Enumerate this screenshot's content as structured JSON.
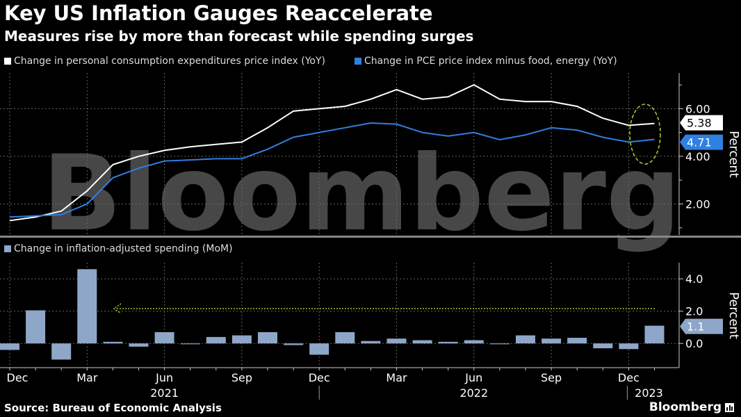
{
  "header": {
    "title": "Key US Inflation Gauges Reaccelerate",
    "subtitle": "Measures rise by more than forecast while spending surges"
  },
  "watermark": "Bloomberg",
  "footer": {
    "source": "Source: Bureau of Economic Analysis",
    "brand": "Bloomberg"
  },
  "colors": {
    "headline": "#ffffff",
    "core": "#2f80e0",
    "bars": "#8ea6c8",
    "annotation": "#9ccc2c"
  },
  "chart_data": [
    {
      "type": "line",
      "x": [
        "2020-12",
        "2021-01",
        "2021-02",
        "2021-03",
        "2021-04",
        "2021-05",
        "2021-06",
        "2021-07",
        "2021-08",
        "2021-09",
        "2021-10",
        "2021-11",
        "2021-12",
        "2022-01",
        "2022-02",
        "2022-03",
        "2022-04",
        "2022-05",
        "2022-06",
        "2022-07",
        "2022-08",
        "2022-09",
        "2022-10",
        "2022-11",
        "2022-12",
        "2023-01"
      ],
      "series": [
        {
          "name": "Change in personal consumption expenditures price index (YoY)",
          "color": "#ffffff",
          "values": [
            1.3,
            1.45,
            1.7,
            2.55,
            3.65,
            4.0,
            4.25,
            4.4,
            4.5,
            4.6,
            5.2,
            5.9,
            6.0,
            6.1,
            6.4,
            6.8,
            6.4,
            6.5,
            7.0,
            6.4,
            6.3,
            6.3,
            6.1,
            5.6,
            5.3,
            5.38
          ]
        },
        {
          "name": "Change in PCE price index minus food, energy (YoY)",
          "color": "#2f80e0",
          "values": [
            1.45,
            1.5,
            1.55,
            2.0,
            3.1,
            3.5,
            3.8,
            3.85,
            3.9,
            3.9,
            4.3,
            4.8,
            5.0,
            5.2,
            5.4,
            5.35,
            5.0,
            4.85,
            5.0,
            4.7,
            4.9,
            5.2,
            5.1,
            4.8,
            4.6,
            4.71
          ]
        }
      ],
      "last_value_labels": [
        "5.38",
        "4.71"
      ],
      "ylabel": "Percent",
      "yticks": [
        "2.00",
        "4.00",
        "6.00"
      ],
      "ylim": [
        0.7,
        7.5
      ],
      "grid": true,
      "legend": "top-left"
    },
    {
      "type": "bar",
      "series": [
        {
          "name": "Change in inflation-adjusted spending (MoM)",
          "color": "#8ea6c8",
          "values": [
            -0.4,
            2.05,
            -1.0,
            4.6,
            0.1,
            -0.2,
            0.7,
            -0.05,
            0.4,
            0.5,
            0.7,
            -0.1,
            -0.7,
            0.7,
            0.15,
            0.3,
            0.2,
            0.1,
            0.2,
            -0.05,
            0.5,
            0.3,
            0.35,
            -0.3,
            -0.35,
            1.1
          ]
        }
      ],
      "last_value_label": "1.1",
      "ylabel": "Percent",
      "yticks": [
        "0.0",
        "2.0",
        "4.0"
      ],
      "ylim": [
        -1.5,
        5.0
      ],
      "grid": true,
      "legend": "top-left"
    }
  ],
  "xaxis": {
    "month_labels": [
      {
        "label": "Dec",
        "index": 0
      },
      {
        "label": "Mar",
        "index": 3
      },
      {
        "label": "Jun",
        "index": 6
      },
      {
        "label": "Sep",
        "index": 9
      },
      {
        "label": "Dec",
        "index": 12
      },
      {
        "label": "Mar",
        "index": 15
      },
      {
        "label": "Jun",
        "index": 18
      },
      {
        "label": "Sep",
        "index": 21
      },
      {
        "label": "Dec",
        "index": 24
      }
    ],
    "year_labels": [
      {
        "label": "2021",
        "index": 6
      },
      {
        "label": "2022",
        "index": 18
      },
      {
        "label": "2023",
        "index": 25
      }
    ]
  }
}
